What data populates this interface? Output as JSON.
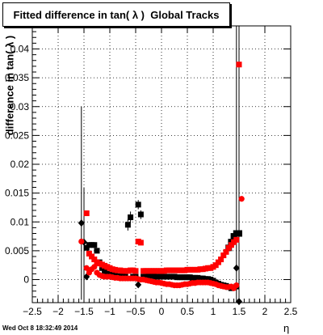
{
  "title": "Fitted difference in tan( λ )  Global Tracks",
  "timestamp": "Wed Oct  8 18:32:49 2014",
  "chart_data": {
    "type": "scatter",
    "title": "Fitted difference in tan( λ )  Global Tracks",
    "xlabel": "η",
    "ylabel": "difference in tan( λ )",
    "xlim": [
      -2.5,
      2.5
    ],
    "ylim": [
      -0.004,
      0.044
    ],
    "grid": true,
    "x_ticks": [
      "−2.5",
      "−2",
      "−1.5",
      "−1",
      "−0.5",
      "0",
      "0.5",
      "1",
      "1.5",
      "2",
      "2.5"
    ],
    "y_ticks": [
      "0",
      "0.005",
      "0.01",
      "0.015",
      "0.02",
      "0.025",
      "0.03",
      "0.035",
      "0.04"
    ],
    "series": [
      {
        "color": "#000000",
        "marker": "square",
        "points": [
          [
            -1.45,
            0.0055
          ],
          [
            -1.4,
            0.006
          ],
          [
            -1.35,
            0.006
          ],
          [
            -1.3,
            0.006
          ],
          [
            -1.25,
            0.005
          ],
          [
            -1.2,
            0.003
          ],
          [
            -1.15,
            0.002
          ],
          [
            -1.1,
            0.0015
          ],
          [
            -1.05,
            0.001
          ],
          [
            -1.0,
            0.001
          ],
          [
            -0.95,
            0.0008
          ],
          [
            -0.9,
            0.0007
          ],
          [
            -0.85,
            0.0006
          ],
          [
            -0.8,
            0.0005
          ],
          [
            -0.75,
            0.0006
          ],
          [
            -0.7,
            0.0005
          ],
          [
            -0.65,
            0.0095
          ],
          [
            -0.6,
            0.0108
          ],
          [
            -0.55,
            0.0005
          ],
          [
            -0.5,
            0.0005
          ],
          [
            -0.45,
            0.013
          ],
          [
            -0.4,
            0.0113
          ],
          [
            -0.35,
            0.0005
          ],
          [
            -0.3,
            0.0005
          ],
          [
            -0.25,
            0.0006
          ],
          [
            -0.2,
            0.0006
          ],
          [
            -0.15,
            0.0006
          ],
          [
            -0.1,
            0.0005
          ],
          [
            -0.05,
            0.0005
          ],
          [
            0.0,
            0.0005
          ],
          [
            0.05,
            0.0005
          ],
          [
            0.1,
            0.0005
          ],
          [
            0.15,
            0.0005
          ],
          [
            0.2,
            0.0005
          ],
          [
            0.25,
            0.0005
          ],
          [
            0.3,
            0.0004
          ],
          [
            0.35,
            0.0004
          ],
          [
            0.4,
            0.0004
          ],
          [
            0.45,
            0.0004
          ],
          [
            0.5,
            0.0004
          ],
          [
            0.55,
            0.0004
          ],
          [
            0.6,
            0.0003
          ],
          [
            0.65,
            0.0003
          ],
          [
            0.7,
            0.0003
          ],
          [
            0.75,
            0.0002
          ],
          [
            0.8,
            0.0002
          ],
          [
            0.85,
            0.0001
          ],
          [
            0.9,
            0.0001
          ],
          [
            0.95,
            0.0
          ],
          [
            1.0,
            -0.0002
          ],
          [
            1.05,
            -0.0005
          ],
          [
            1.1,
            -0.0007
          ],
          [
            1.15,
            -0.0009
          ],
          [
            1.2,
            -0.001
          ],
          [
            1.25,
            -0.0011
          ],
          [
            1.3,
            -0.0013
          ],
          [
            1.35,
            -0.0015
          ],
          [
            1.4,
            -0.0014
          ],
          [
            1.45,
            -0.0012
          ]
        ]
      },
      {
        "color": "#000000",
        "marker": "square-outline",
        "points": [
          [
            1.3,
            0.0055
          ],
          [
            1.35,
            0.0065
          ],
          [
            1.4,
            0.0075
          ],
          [
            1.45,
            0.008
          ],
          [
            1.5,
            0.008
          ]
        ]
      },
      {
        "color": "#000000",
        "marker": "diamond",
        "points": [
          [
            -1.55,
            0.0098
          ],
          [
            -1.5,
            0.0065
          ],
          [
            -1.45,
            0.0005
          ],
          [
            -0.45,
            -0.0009
          ],
          [
            1.45,
            0.002
          ],
          [
            1.5,
            -0.0038
          ]
        ]
      },
      {
        "color": "#ff0000",
        "marker": "square",
        "points": [
          [
            -1.45,
            0.0115
          ],
          [
            -1.4,
            0.0045
          ],
          [
            -1.35,
            0.004
          ],
          [
            -1.3,
            0.0035
          ],
          [
            -1.25,
            0.003
          ],
          [
            -1.2,
            0.0028
          ],
          [
            -1.15,
            0.0026
          ],
          [
            -1.1,
            0.0024
          ],
          [
            -1.05,
            0.0022
          ],
          [
            -1.0,
            0.002
          ],
          [
            -0.95,
            0.0018
          ],
          [
            -0.9,
            0.0017
          ],
          [
            -0.85,
            0.0016
          ],
          [
            -0.8,
            0.0016
          ],
          [
            -0.75,
            0.0015
          ],
          [
            -0.7,
            0.0015
          ],
          [
            -0.65,
            0.0015
          ],
          [
            -0.6,
            0.0016
          ],
          [
            -0.55,
            0.0016
          ],
          [
            -0.5,
            0.0015
          ],
          [
            -0.45,
            0.0066
          ],
          [
            -0.4,
            0.0064
          ],
          [
            -0.35,
            0.0015
          ],
          [
            -0.3,
            0.0015
          ],
          [
            -0.25,
            0.0015
          ],
          [
            -0.2,
            0.0015
          ],
          [
            -0.15,
            0.0015
          ],
          [
            -0.1,
            0.0015
          ],
          [
            -0.05,
            0.0015
          ],
          [
            0.0,
            0.0015
          ],
          [
            0.05,
            0.0015
          ],
          [
            0.1,
            0.0016
          ],
          [
            0.15,
            0.0016
          ],
          [
            0.2,
            0.0016
          ],
          [
            0.25,
            0.0016
          ],
          [
            0.3,
            0.0016
          ],
          [
            0.35,
            0.0016
          ],
          [
            0.4,
            0.0016
          ],
          [
            0.45,
            0.0016
          ],
          [
            0.5,
            0.0017
          ],
          [
            0.55,
            0.0017
          ],
          [
            0.6,
            0.0017
          ],
          [
            0.65,
            0.0017
          ],
          [
            0.7,
            0.0017
          ],
          [
            0.75,
            0.0018
          ],
          [
            0.8,
            0.0018
          ],
          [
            0.85,
            0.0019
          ],
          [
            0.9,
            0.002
          ],
          [
            0.95,
            0.002
          ],
          [
            1.0,
            0.0022
          ],
          [
            1.05,
            0.0025
          ],
          [
            1.1,
            0.003
          ],
          [
            1.15,
            0.0035
          ],
          [
            1.2,
            0.0042
          ],
          [
            1.25,
            0.0048
          ],
          [
            1.3,
            0.0055
          ],
          [
            1.35,
            0.006
          ],
          [
            1.4,
            0.0065
          ],
          [
            1.45,
            0.0069
          ],
          [
            1.5,
            0.0373
          ]
        ]
      },
      {
        "color": "#ff0000",
        "marker": "circle",
        "points": [
          [
            -1.55,
            0.0066
          ],
          [
            -1.45,
            0.002
          ],
          [
            -1.4,
            0.0012
          ],
          [
            -1.35,
            0.0018
          ],
          [
            -1.3,
            0.0022
          ],
          [
            -1.25,
            0.0012
          ],
          [
            -1.2,
            0.0008
          ],
          [
            -1.15,
            0.0006
          ],
          [
            -1.1,
            0.0005
          ],
          [
            -1.05,
            0.0005
          ],
          [
            -1.0,
            0.0005
          ],
          [
            -0.95,
            0.0004
          ],
          [
            -0.9,
            0.0003
          ],
          [
            -0.85,
            0.0003
          ],
          [
            -0.8,
            0.0002
          ],
          [
            -0.75,
            0.0002
          ],
          [
            -0.7,
            0.0002
          ],
          [
            -0.65,
            0.0002
          ],
          [
            -0.6,
            0.0002
          ],
          [
            -0.55,
            0.0002
          ],
          [
            -0.5,
            0.0002
          ],
          [
            -0.45,
            0.0001
          ],
          [
            -0.4,
            0.0
          ],
          [
            -0.35,
            0.0
          ],
          [
            -0.3,
            -0.0001
          ],
          [
            -0.25,
            -0.0002
          ],
          [
            -0.2,
            -0.0003
          ],
          [
            -0.15,
            -0.0004
          ],
          [
            -0.1,
            -0.0005
          ],
          [
            -0.05,
            -0.0005
          ],
          [
            0.0,
            -0.0006
          ],
          [
            0.05,
            -0.0007
          ],
          [
            0.1,
            -0.0008
          ],
          [
            0.15,
            -0.0008
          ],
          [
            0.2,
            -0.0009
          ],
          [
            0.25,
            -0.001
          ],
          [
            0.3,
            -0.001
          ],
          [
            0.35,
            -0.001
          ],
          [
            0.4,
            -0.0009
          ],
          [
            0.45,
            -0.0008
          ],
          [
            0.5,
            -0.0008
          ],
          [
            0.55,
            -0.0007
          ],
          [
            0.6,
            -0.0006
          ],
          [
            0.65,
            -0.0006
          ],
          [
            0.7,
            -0.0005
          ],
          [
            0.75,
            -0.0005
          ],
          [
            0.8,
            -0.0005
          ],
          [
            0.85,
            -0.0005
          ],
          [
            0.9,
            -0.0005
          ],
          [
            0.95,
            -0.0006
          ],
          [
            1.0,
            -0.0007
          ],
          [
            1.05,
            -0.0008
          ],
          [
            1.1,
            -0.001
          ],
          [
            1.15,
            -0.0011
          ],
          [
            1.2,
            -0.0012
          ],
          [
            1.25,
            -0.0013
          ],
          [
            1.3,
            -0.0013
          ],
          [
            1.35,
            -0.0012
          ],
          [
            1.4,
            -0.0015
          ],
          [
            1.45,
            -0.001
          ],
          [
            1.55,
            0.014
          ]
        ]
      }
    ],
    "error_bars": [
      {
        "x": -1.55,
        "low": -0.0035,
        "high": 0.03
      },
      {
        "x": -1.5,
        "low": -0.004,
        "high": 0.016
      },
      {
        "x": -0.65,
        "low": 0.0085,
        "high": 0.0105
      },
      {
        "x": -0.6,
        "low": 0.0098,
        "high": 0.0118
      },
      {
        "x": -0.45,
        "low": 0.0122,
        "high": 0.0138
      },
      {
        "x": -0.4,
        "low": 0.0105,
        "high": 0.012
      },
      {
        "x": 1.45,
        "low": -0.004,
        "high": 0.044
      },
      {
        "x": 1.5,
        "low": -0.004,
        "high": 0.044
      }
    ],
    "legend": "none"
  }
}
